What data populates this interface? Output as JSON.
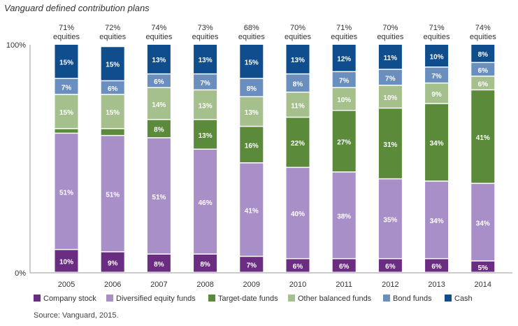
{
  "chart_data": {
    "type": "stacked-bar",
    "title": "Vanguard defined contribution plans",
    "source": "Source: Vanguard, 2015.",
    "y_axis_labels": [
      "100%",
      "0%"
    ],
    "ylim": [
      0,
      100
    ],
    "equities_word": "equities",
    "categories": [
      "2005",
      "2006",
      "2007",
      "2008",
      "2009",
      "2010",
      "2011",
      "2012",
      "2013",
      "2014"
    ],
    "equity_percents": [
      "71%",
      "72%",
      "74%",
      "73%",
      "68%",
      "70%",
      "71%",
      "70%",
      "71%",
      "74%"
    ],
    "series": [
      {
        "name": "Company stock",
        "color": "#6b2d82",
        "values": [
          10,
          9,
          8,
          8,
          7,
          6,
          6,
          6,
          6,
          5
        ],
        "labels": [
          "10%",
          "9%",
          "8%",
          "8%",
          "7%",
          "6%",
          "6%",
          "6%",
          "6%",
          "5%"
        ]
      },
      {
        "name": "Diversified equity funds",
        "color": "#a98fc8",
        "values": [
          51,
          51,
          51,
          46,
          41,
          40,
          38,
          35,
          34,
          34
        ],
        "labels": [
          "51%",
          "51%",
          "51%",
          "46%",
          "41%",
          "40%",
          "38%",
          "35%",
          "34%",
          "34%"
        ]
      },
      {
        "name": "Target-date funds",
        "color": "#5a8a3a",
        "values": [
          2,
          3,
          8,
          13,
          16,
          22,
          27,
          31,
          34,
          41
        ],
        "labels": [
          "",
          "",
          "8%",
          "13%",
          "16%",
          "22%",
          "27%",
          "31%",
          "34%",
          "41%"
        ]
      },
      {
        "name": "Other balanced funds",
        "color": "#a5c08c",
        "values": [
          15,
          15,
          14,
          13,
          13,
          11,
          10,
          10,
          9,
          6
        ],
        "labels": [
          "15%",
          "15%",
          "14%",
          "13%",
          "13%",
          "11%",
          "10%",
          "10%",
          "9%",
          "6%"
        ]
      },
      {
        "name": "Bond funds",
        "color": "#6a8fbf",
        "values": [
          7,
          6,
          6,
          7,
          8,
          8,
          7,
          7,
          7,
          6
        ],
        "labels": [
          "7%",
          "6%",
          "6%",
          "7%",
          "8%",
          "8%",
          "7%",
          "7%",
          "7%",
          "6%"
        ]
      },
      {
        "name": "Cash",
        "color": "#0f4d8c",
        "values": [
          15,
          15,
          13,
          13,
          15,
          13,
          12,
          11,
          10,
          8
        ],
        "labels": [
          "15%",
          "15%",
          "13%",
          "13%",
          "15%",
          "13%",
          "12%",
          "11%",
          "10%",
          "8%"
        ]
      }
    ]
  }
}
